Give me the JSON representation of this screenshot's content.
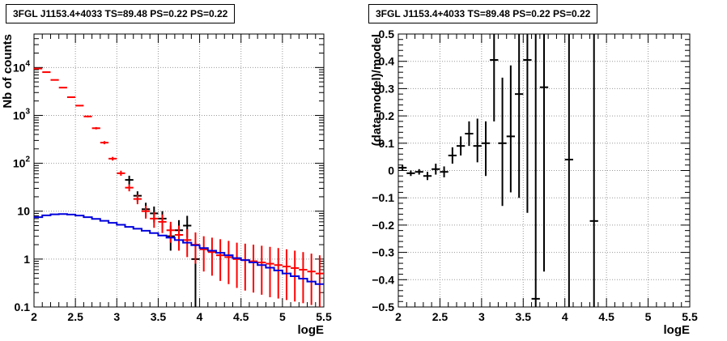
{
  "chart_data": [
    {
      "type": "line",
      "title": "3FGL J1153.4+4033 TS=89.48 PS=0.22 PS=0.22",
      "xlabel": "logE",
      "ylabel": "Nb of counts",
      "xlim": [
        2,
        5.5
      ],
      "ylim": [
        0.1,
        50000
      ],
      "log_y": true,
      "grid": true,
      "x_ticks": [
        "2",
        "2.5",
        "3",
        "3.5",
        "4",
        "4.5",
        "5",
        "5.5"
      ],
      "y_ticks": [
        "0.1",
        "1",
        "10",
        "10^2",
        "10^3",
        "10^4"
      ],
      "series": [
        {
          "color": "#000000",
          "style": "errorbar",
          "x": [
            3.15,
            3.25,
            3.35,
            3.45,
            3.55,
            3.65,
            3.75,
            3.85,
            3.95
          ],
          "y": [
            45,
            21,
            11,
            9,
            7,
            3,
            4,
            5,
            1.0
          ],
          "ylo": [
            36,
            16,
            7.5,
            5.8,
            4.3,
            1.5,
            2.1,
            2.8,
            0.1
          ],
          "yhi": [
            55,
            26,
            15,
            12.5,
            10,
            5,
            6.5,
            8,
            2.3
          ]
        },
        {
          "color": "#ff0000",
          "style": "errorbar",
          "x": [
            2.05,
            2.15,
            2.25,
            2.35,
            2.45,
            2.55,
            2.65,
            2.75,
            2.85,
            2.95,
            3.05,
            3.15,
            3.25,
            3.35,
            3.45,
            3.55,
            3.65,
            3.75,
            3.85,
            3.95,
            4.05,
            4.15,
            4.25,
            4.35,
            4.45,
            4.55,
            4.65,
            4.75,
            4.85,
            4.95,
            5.05,
            5.15,
            5.25,
            5.35,
            5.45
          ],
          "y": [
            9500,
            8000,
            5500,
            3800,
            2400,
            1600,
            950,
            540,
            270,
            125,
            62,
            31,
            18,
            10,
            7,
            6,
            4,
            3.2,
            2.5,
            2,
            1.6,
            1.4,
            1.2,
            1.1,
            1.0,
            0.95,
            0.9,
            0.85,
            0.8,
            0.75,
            0.7,
            0.65,
            0.6,
            0.55,
            0.5
          ],
          "ylo": [
            9300,
            7800,
            5400,
            3700,
            2350,
            1550,
            910,
            510,
            250,
            114,
            55,
            26,
            14,
            7,
            4.5,
            3.5,
            2.2,
            1.5,
            1.1,
            0.8,
            0.55,
            0.45,
            0.35,
            0.3,
            0.25,
            0.22,
            0.2,
            0.18,
            0.16,
            0.15,
            0.14,
            0.13,
            0.12,
            0.11,
            0.1
          ],
          "yhi": [
            9700,
            8200,
            5600,
            3900,
            2450,
            1650,
            990,
            570,
            290,
            136,
            70,
            36,
            22,
            13,
            9.5,
            8.5,
            6,
            5,
            4.2,
            3.6,
            3.0,
            2.8,
            2.6,
            2.4,
            2.2,
            2.1,
            2.0,
            1.9,
            1.8,
            1.7,
            1.6,
            1.5,
            1.4,
            1.3,
            1.2
          ]
        },
        {
          "color": "#0000dd",
          "style": "step",
          "x": [
            2.0,
            2.1,
            2.2,
            2.3,
            2.4,
            2.5,
            2.6,
            2.7,
            2.8,
            2.9,
            3.0,
            3.1,
            3.2,
            3.3,
            3.4,
            3.5,
            3.6,
            3.7,
            3.8,
            3.9,
            4.0,
            4.1,
            4.2,
            4.3,
            4.4,
            4.5,
            4.6,
            4.7,
            4.8,
            4.9,
            5.0,
            5.1,
            5.2,
            5.3,
            5.4,
            5.5
          ],
          "y": [
            7.5,
            8.2,
            8.6,
            8.7,
            8.5,
            8.1,
            7.5,
            6.9,
            6.3,
            5.7,
            5.2,
            4.7,
            4.3,
            3.9,
            3.5,
            3.1,
            2.8,
            2.5,
            2.2,
            1.95,
            1.7,
            1.5,
            1.35,
            1.2,
            1.05,
            0.95,
            0.85,
            0.75,
            0.66,
            0.58,
            0.5,
            0.44,
            0.39,
            0.34,
            0.3,
            0.3
          ]
        }
      ]
    },
    {
      "type": "scatter",
      "title": "3FGL J1153.4+4033 TS=89.48 PS=0.22 PS=0.22",
      "xlabel": "logE",
      "ylabel": "(data-model)/model",
      "xlim": [
        2,
        5.5
      ],
      "ylim": [
        -0.5,
        0.5
      ],
      "grid": true,
      "x_ticks": [
        "2",
        "2.5",
        "3",
        "3.5",
        "4",
        "4.5",
        "5",
        "5.5"
      ],
      "y_ticks": [
        "−0.5",
        "−0.4",
        "−0.3",
        "−0.2",
        "−0.1",
        "0",
        "0.1",
        "0.2",
        "0.3",
        "0.4",
        "0.5"
      ],
      "series": [
        {
          "color": "#000000",
          "style": "errorbar",
          "x": [
            2.05,
            2.15,
            2.25,
            2.35,
            2.45,
            2.55,
            2.65,
            2.75,
            2.85,
            2.95,
            3.05,
            3.15,
            3.25,
            3.35,
            3.45,
            3.55,
            3.65,
            3.75,
            4.05,
            4.35
          ],
          "y": [
            0.01,
            -0.01,
            -0.005,
            -0.02,
            0.005,
            -0.005,
            0.055,
            0.09,
            0.135,
            0.09,
            0.1,
            0.405,
            0.1,
            0.125,
            0.28,
            0.405,
            -0.47,
            0.305,
            0.04,
            -0.185
          ],
          "ylo": [
            0.0,
            -0.02,
            -0.015,
            -0.035,
            -0.015,
            -0.025,
            0.025,
            0.055,
            0.09,
            0.03,
            -0.02,
            0.18,
            -0.13,
            -0.08,
            -0.1,
            -0.155,
            -0.5,
            -0.37,
            -0.5,
            -0.5
          ],
          "yhi": [
            0.02,
            0.0,
            0.005,
            -0.005,
            0.025,
            0.015,
            0.085,
            0.125,
            0.18,
            0.19,
            0.18,
            0.5,
            0.34,
            0.385,
            0.5,
            0.5,
            0.5,
            0.5,
            0.5,
            0.5
          ]
        }
      ]
    }
  ]
}
